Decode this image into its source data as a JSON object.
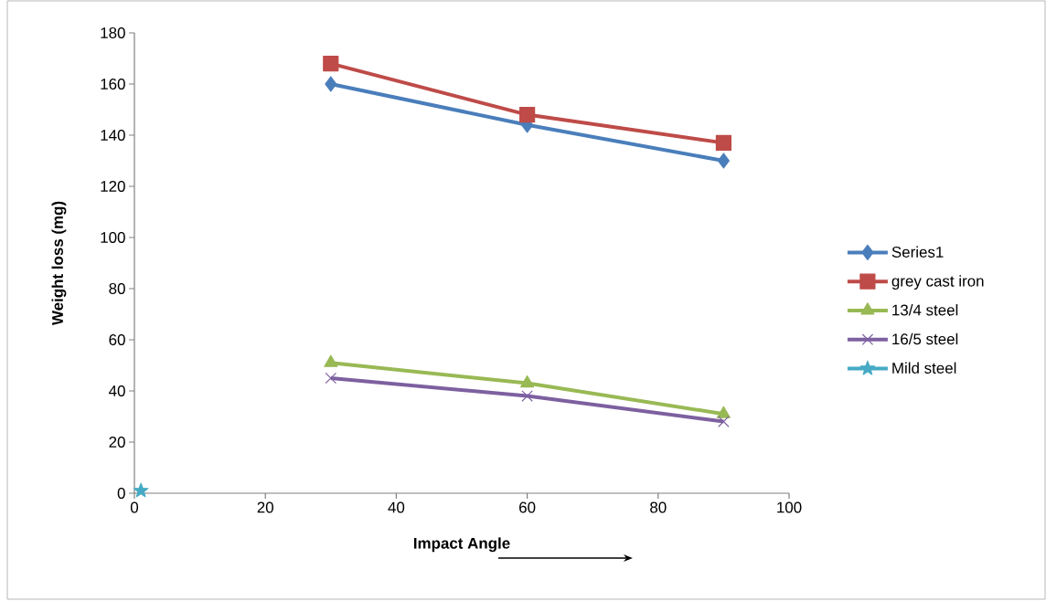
{
  "chart_data": {
    "type": "line",
    "xlabel": "Impact Angle",
    "ylabel": "Weight loss (mg)",
    "xlim": [
      0,
      100
    ],
    "xticks": [
      0,
      20,
      40,
      60,
      80,
      100
    ],
    "ylim": [
      0,
      180
    ],
    "yticks": [
      0,
      20,
      40,
      60,
      80,
      100,
      120,
      140,
      160,
      180
    ],
    "grid": false,
    "legend": "right",
    "series": [
      {
        "name": "Series1",
        "color": "#4a7ebb",
        "marker": "diamond",
        "x": [
          30,
          60,
          90
        ],
        "values": [
          160,
          144,
          130
        ]
      },
      {
        "name": "grey cast iron",
        "color": "#be4b48",
        "marker": "square",
        "x": [
          30,
          60,
          90
        ],
        "values": [
          168,
          148,
          137
        ]
      },
      {
        "name": "13/4 steel",
        "color": "#98b954",
        "marker": "triangle",
        "x": [
          30,
          60,
          90
        ],
        "values": [
          51,
          43,
          31
        ]
      },
      {
        "name": "16/5 steel",
        "color": "#7d60a0",
        "marker": "cross",
        "x": [
          30,
          60,
          90
        ],
        "values": [
          45,
          38,
          28
        ]
      },
      {
        "name": "Mild steel",
        "color": "#46aac5",
        "marker": "star",
        "x": [
          1
        ],
        "values": [
          1
        ]
      }
    ]
  }
}
